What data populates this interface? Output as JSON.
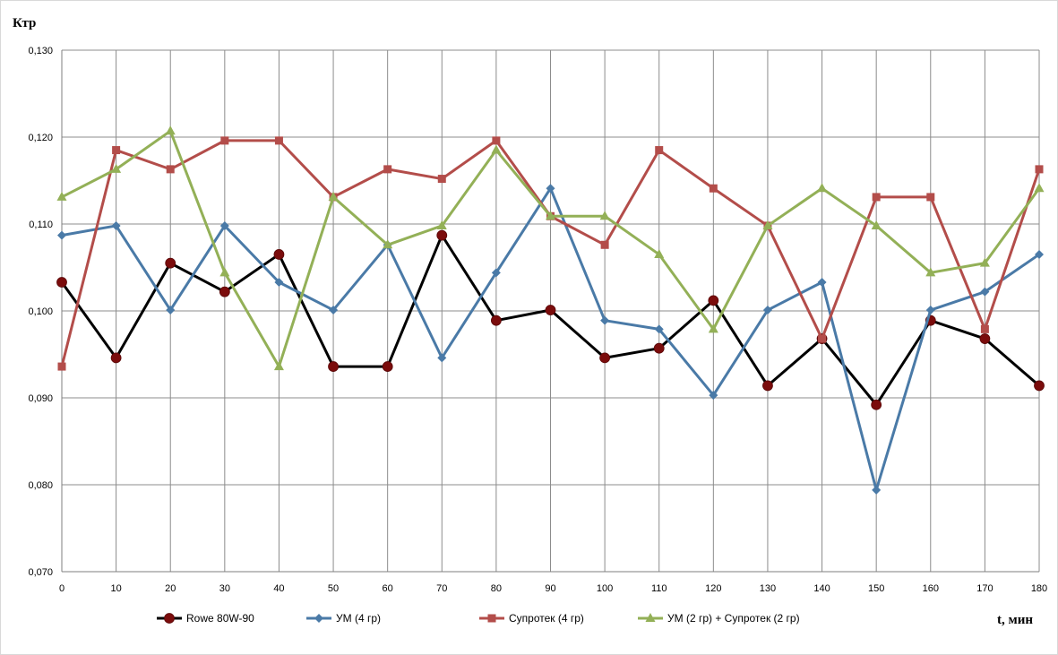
{
  "chart_data": {
    "type": "line",
    "title": "",
    "ylabel": "Ктр",
    "xlabel": "t, мин",
    "x": [
      0,
      10,
      20,
      30,
      40,
      50,
      60,
      70,
      80,
      90,
      100,
      110,
      120,
      130,
      140,
      150,
      160,
      170,
      180
    ],
    "xticks": [
      "0",
      "10",
      "20",
      "30",
      "40",
      "50",
      "60",
      "70",
      "80",
      "90",
      "100",
      "110",
      "120",
      "130",
      "140",
      "150",
      "160",
      "170",
      "180"
    ],
    "ylim": [
      0.07,
      0.13
    ],
    "yticks": [
      "0,070",
      "0,080",
      "0,090",
      "0,100",
      "0,110",
      "0,120",
      "0,130"
    ],
    "grid": true,
    "legend_position": "bottom",
    "series": [
      {
        "name": "Rowe 80W-90",
        "color": "#000000",
        "marker": "circle",
        "marker_color": "#7b0c0c",
        "values": [
          0.1033,
          0.0946,
          0.1055,
          0.1022,
          0.1065,
          0.0936,
          0.0936,
          0.1087,
          0.0989,
          0.1001,
          0.0946,
          0.0957,
          0.1012,
          0.0914,
          0.0968,
          0.0892,
          0.0989,
          0.0968,
          0.0914
        ]
      },
      {
        "name": "УМ (4 гр)",
        "color": "#4a7aa7",
        "marker": "diamond",
        "marker_color": "#4a7aa7",
        "values": [
          0.1087,
          0.1098,
          0.1001,
          0.1098,
          0.1033,
          0.1001,
          0.1076,
          0.0946,
          0.1044,
          0.1141,
          0.0989,
          0.0979,
          0.0903,
          0.1001,
          0.1033,
          0.0794,
          0.1001,
          0.1022,
          0.1065
        ]
      },
      {
        "name": "Супротек (4 гр)",
        "color": "#b34d4a",
        "marker": "square",
        "marker_color": "#b34d4a",
        "values": [
          0.0936,
          0.1185,
          0.1163,
          0.1196,
          0.1196,
          0.1131,
          0.1163,
          0.1152,
          0.1196,
          0.1109,
          0.1076,
          0.1185,
          0.1141,
          0.1098,
          0.0968,
          0.1131,
          0.1131,
          0.0979,
          0.1163
        ]
      },
      {
        "name": "УМ (2 гр)  + Супротек (2 гр)",
        "color": "#93b057",
        "marker": "triangle",
        "marker_color": "#93b057",
        "values": [
          0.1131,
          0.1163,
          0.1207,
          0.1044,
          0.0936,
          0.1131,
          0.1076,
          0.1098,
          0.1185,
          0.1109,
          0.1109,
          0.1065,
          0.0979,
          0.1098,
          0.1141,
          0.1098,
          0.1044,
          0.1055,
          0.1141
        ]
      }
    ]
  }
}
